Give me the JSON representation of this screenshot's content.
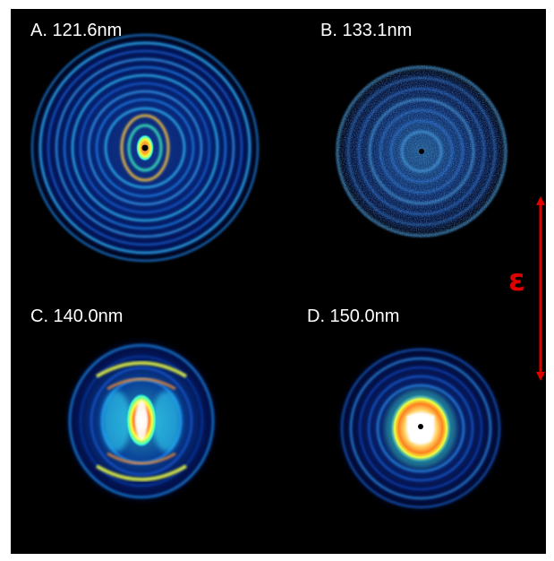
{
  "panels": {
    "a": {
      "label": "A. 121.6nm"
    },
    "b": {
      "label": "B. 133.1nm"
    },
    "c": {
      "label": "C. 140.0nm"
    },
    "d": {
      "label": "D. 150.0nm"
    }
  },
  "strain_axis": {
    "symbol": "ε",
    "direction": "vertical",
    "arrow_color": "#e00000"
  },
  "colors": {
    "background": "#000000",
    "label": "#ffffff",
    "colormap": [
      "#000040",
      "#0010a0",
      "#0050e0",
      "#00b0ff",
      "#40ffc0",
      "#ffff40",
      "#ff8000",
      "#ffffff"
    ]
  }
}
